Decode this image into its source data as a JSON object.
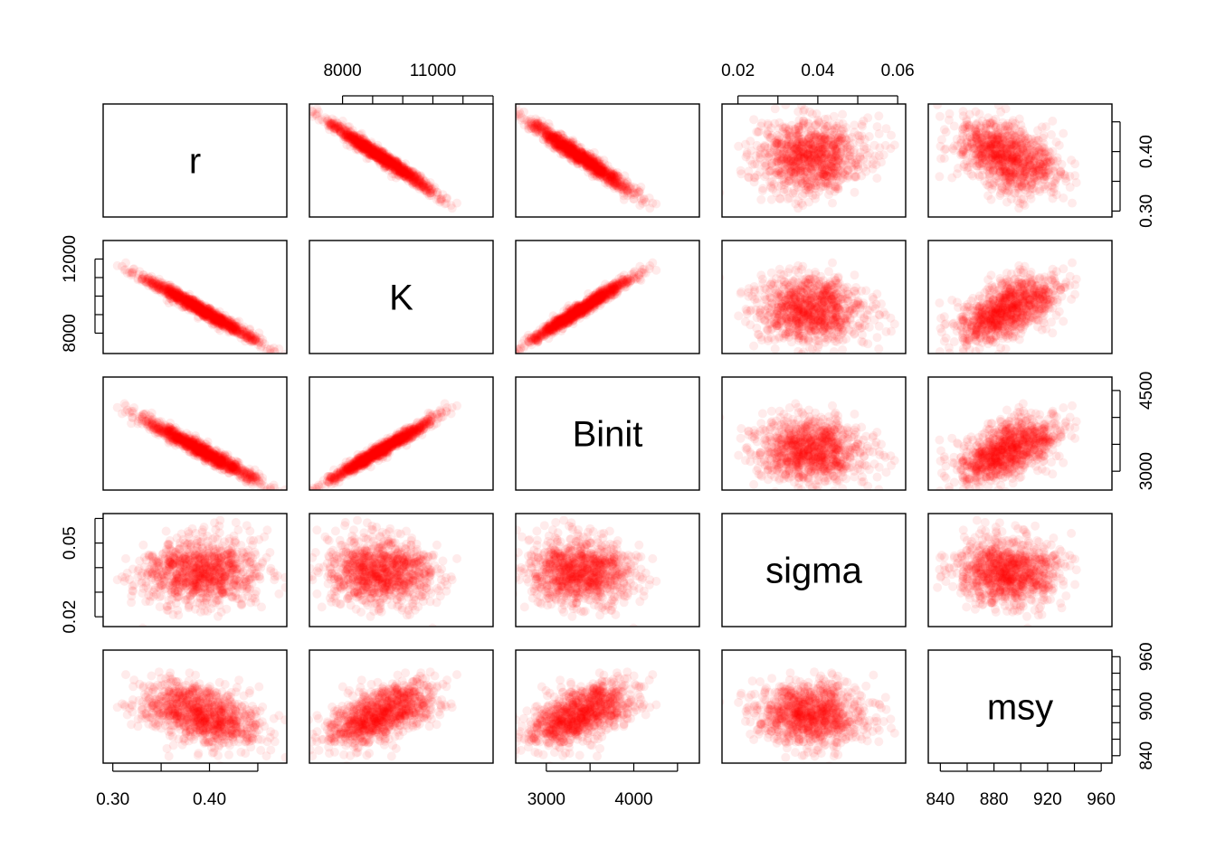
{
  "chart_data": {
    "type": "scatter",
    "subtype": "pairs-matrix",
    "variables": [
      "r",
      "K",
      "Binit",
      "sigma",
      "msy"
    ],
    "n_points_approx": 1000,
    "point_color": "#FF0000",
    "point_alpha": 0.08,
    "ranges": {
      "r": [
        0.29,
        0.48
      ],
      "K": [
        6900,
        13000
      ],
      "Binit": [
        2650,
        4750
      ],
      "sigma": [
        0.016,
        0.062
      ],
      "msy": [
        831,
        968
      ]
    },
    "means": {
      "r": 0.39,
      "K": 9300,
      "Binit": 3400,
      "sigma": 0.038,
      "msy": 890
    },
    "sds": {
      "r": 0.03,
      "K": 900,
      "Binit": 300,
      "sigma": 0.007,
      "msy": 20
    },
    "correlations": [
      {
        "x": "r",
        "y": "K",
        "rho": -0.98
      },
      {
        "x": "r",
        "y": "Binit",
        "rho": -0.97
      },
      {
        "x": "r",
        "y": "sigma",
        "rho": 0.0
      },
      {
        "x": "r",
        "y": "msy",
        "rho": -0.45
      },
      {
        "x": "K",
        "y": "Binit",
        "rho": 0.98
      },
      {
        "x": "K",
        "y": "sigma",
        "rho": 0.0
      },
      {
        "x": "K",
        "y": "msy",
        "rho": 0.62
      },
      {
        "x": "Binit",
        "y": "sigma",
        "rho": 0.0
      },
      {
        "x": "Binit",
        "y": "msy",
        "rho": 0.6
      },
      {
        "x": "sigma",
        "y": "msy",
        "rho": 0.0
      }
    ],
    "axes": {
      "top": [
        {
          "col": 1,
          "var": "K",
          "labels": [
            "8000",
            "11000"
          ],
          "label_values": [
            8000,
            11000
          ],
          "ticks": [
            8000,
            9000,
            10000,
            11000,
            12000,
            13000
          ]
        },
        {
          "col": 3,
          "var": "sigma",
          "labels": [
            "0.02",
            "0.04",
            "0.06"
          ],
          "label_values": [
            0.02,
            0.04,
            0.06
          ],
          "ticks": [
            0.02,
            0.03,
            0.04,
            0.05,
            0.06
          ]
        }
      ],
      "bottom": [
        {
          "col": 0,
          "var": "r",
          "labels": [
            "0.30",
            "0.40"
          ],
          "label_values": [
            0.3,
            0.4
          ],
          "ticks": [
            0.3,
            0.35,
            0.4,
            0.45
          ]
        },
        {
          "col": 2,
          "var": "Binit",
          "labels": [
            "3000",
            "4000"
          ],
          "label_values": [
            3000,
            4000
          ],
          "ticks": [
            3000,
            3500,
            4000,
            4500
          ]
        },
        {
          "col": 4,
          "var": "msy",
          "labels": [
            "840",
            "880",
            "920",
            "960"
          ],
          "label_values": [
            840,
            880,
            920,
            960
          ],
          "ticks": [
            840,
            860,
            880,
            900,
            920,
            940,
            960
          ]
        }
      ],
      "left": [
        {
          "row": 1,
          "var": "K",
          "labels": [
            "8000",
            "12000"
          ],
          "label_values": [
            8000,
            12000
          ],
          "ticks": [
            8000,
            9000,
            10000,
            11000,
            12000
          ]
        },
        {
          "row": 3,
          "var": "sigma",
          "labels": [
            "0.02",
            "0.05"
          ],
          "label_values": [
            0.02,
            0.05
          ],
          "ticks": [
            0.02,
            0.03,
            0.04,
            0.05,
            0.06
          ]
        }
      ],
      "right": [
        {
          "row": 0,
          "var": "r",
          "labels": [
            "0.30",
            "0.40"
          ],
          "label_values": [
            0.3,
            0.4
          ],
          "ticks": [
            0.3,
            0.35,
            0.4,
            0.45
          ]
        },
        {
          "row": 2,
          "var": "Binit",
          "labels": [
            "3000",
            "4500"
          ],
          "label_values": [
            3000,
            4500
          ],
          "ticks": [
            3000,
            3500,
            4000,
            4500
          ]
        },
        {
          "row": 4,
          "var": "msy",
          "labels": [
            "840",
            "900",
            "960"
          ],
          "label_values": [
            840,
            900,
            960
          ],
          "ticks": [
            840,
            860,
            880,
            900,
            920,
            940,
            960
          ]
        }
      ]
    },
    "grid": false,
    "title": "",
    "legend": "none"
  }
}
